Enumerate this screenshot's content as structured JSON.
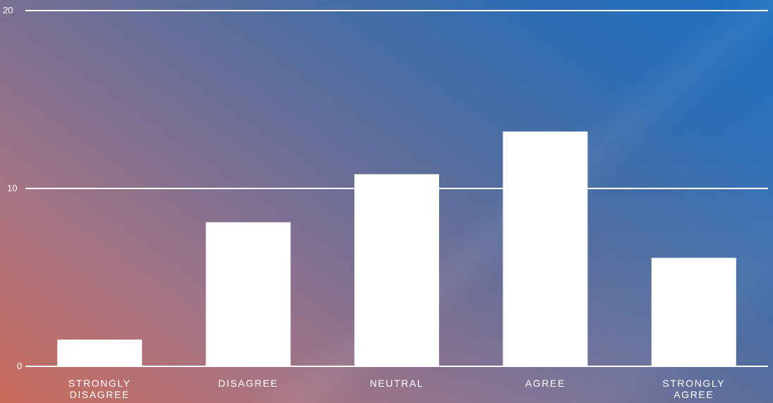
{
  "chart_data": {
    "type": "bar",
    "categories": [
      "STRONGLY DISAGREE",
      "DISAGREE",
      "NEUTRAL",
      "AGREE",
      "STRONGLY AGREE"
    ],
    "category_lines": [
      [
        "STRONGLY",
        "DISAGREE"
      ],
      [
        "DISAGREE"
      ],
      [
        "NEUTRAL"
      ],
      [
        "AGREE"
      ],
      [
        "STRONGLY",
        "AGREE"
      ]
    ],
    "values": [
      1.5,
      8.1,
      10.8,
      13.2,
      6.1
    ],
    "ylim": [
      0,
      20
    ],
    "yticks": [
      "0",
      "10",
      "20"
    ],
    "grid": true,
    "colors": {
      "bar": "#ffffff",
      "grid": "#ffffff",
      "text": "#ffffff",
      "gradient_start": "#c96b5a",
      "gradient_end": "#1f6fc0"
    }
  }
}
